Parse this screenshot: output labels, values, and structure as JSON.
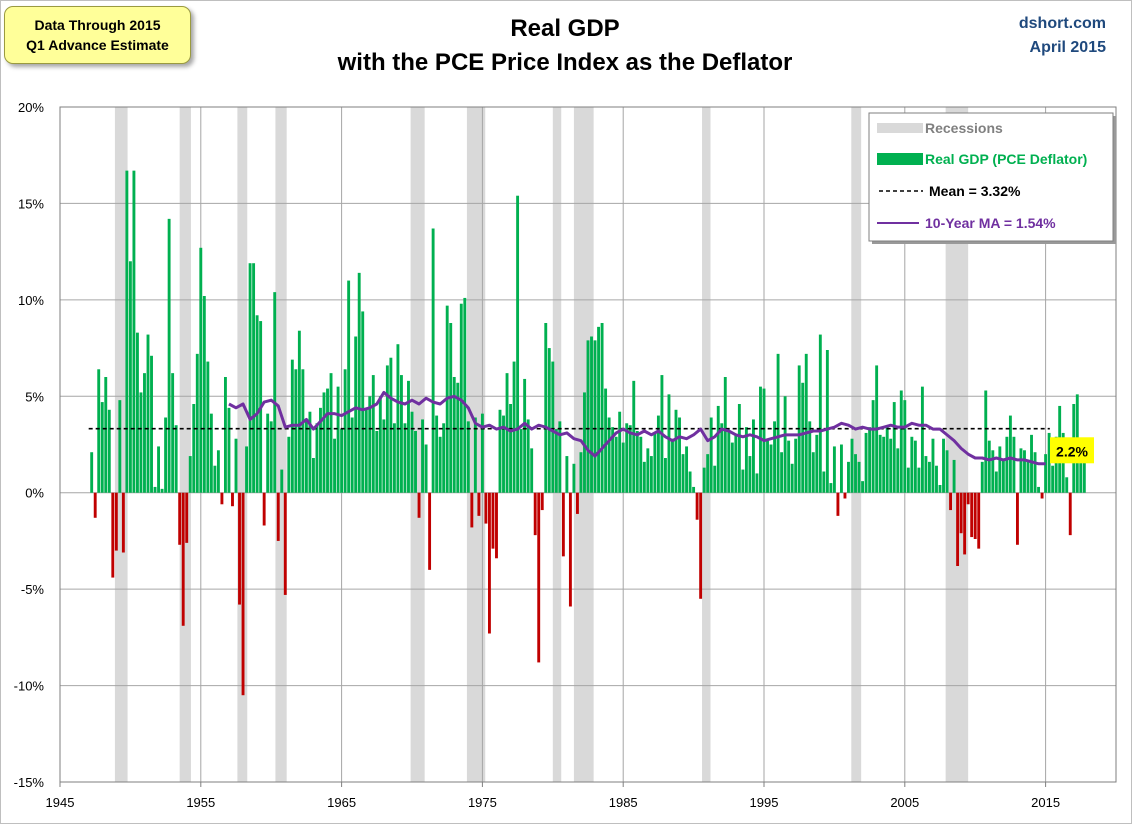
{
  "annotation_box": {
    "line1": "Data Through 2015",
    "line2": "Q1 Advance Estimate"
  },
  "title": {
    "line1": "Real GDP",
    "line2": "with the PCE Price Index as the Deflator"
  },
  "source": {
    "site": "dshort.com",
    "date": "April 2015"
  },
  "colors": {
    "positive_bar": "#00b050",
    "negative_bar": "#c00000",
    "recession": "#d9d9d9",
    "mean_line": "#000000",
    "ma_line": "#7030a0",
    "callout_bg": "#ffff00",
    "grid": "#a6a6a6"
  },
  "chart_data": {
    "type": "bar",
    "x_range": [
      1945,
      2020
    ],
    "ylim": [
      -15,
      20
    ],
    "y_ticks": [
      "-15%",
      "-10%",
      "-5%",
      "0%",
      "5%",
      "10%",
      "15%",
      "20%"
    ],
    "y_tick_values": [
      -15,
      -10,
      -5,
      0,
      5,
      10,
      15,
      20
    ],
    "x_ticks": [
      "1945",
      "1955",
      "1965",
      "1975",
      "1985",
      "1995",
      "2005",
      "2015"
    ],
    "x_tick_values": [
      1945,
      1955,
      1965,
      1975,
      1985,
      1995,
      2005,
      2015
    ],
    "grid": true,
    "legend_position": "top-right",
    "legend": {
      "recessions": "Recessions",
      "bars": "Real GDP (PCE Deflator)",
      "mean": "Mean = 3.32%",
      "ma": "10-Year MA = 1.54%"
    },
    "recessions": [
      [
        1948.9,
        1949.8
      ],
      [
        1953.5,
        1954.3
      ],
      [
        1957.6,
        1958.3
      ],
      [
        1960.3,
        1961.1
      ],
      [
        1969.9,
        1970.9
      ],
      [
        1973.9,
        1975.2
      ],
      [
        1980.0,
        1980.6
      ],
      [
        1981.5,
        1982.9
      ],
      [
        1990.6,
        1991.2
      ],
      [
        2001.2,
        2001.9
      ],
      [
        2007.9,
        2009.5
      ]
    ],
    "mean": 3.32,
    "callout": {
      "label": "2.2%",
      "value": 2.2
    },
    "series": [
      {
        "name": "Real GDP (PCE Deflator)",
        "start": 1947.25,
        "step": 0.25,
        "values": [
          2.1,
          -1.3,
          6.4,
          4.7,
          6.0,
          4.3,
          -4.4,
          -3.0,
          4.8,
          -3.1,
          16.7,
          12.0,
          16.7,
          8.3,
          5.2,
          6.2,
          8.2,
          7.1,
          0.3,
          2.4,
          0.2,
          3.9,
          14.2,
          6.2,
          3.5,
          -2.7,
          -6.9,
          -2.6,
          1.9,
          4.6,
          7.2,
          12.7,
          10.2,
          6.8,
          4.1,
          1.4,
          2.2,
          -0.6,
          6.0,
          4.4,
          -0.7,
          2.8,
          -5.8,
          -10.5,
          2.4,
          11.9,
          11.9,
          9.2,
          8.9,
          -1.7,
          4.1,
          3.7,
          10.4,
          -2.5,
          1.2,
          -5.3,
          2.9,
          6.9,
          6.4,
          8.4,
          6.4,
          3.8,
          4.2,
          1.8,
          3.6,
          4.4,
          5.2,
          5.4,
          6.2,
          2.8,
          5.5,
          3.3,
          6.4,
          11.0,
          3.9,
          8.1,
          11.4,
          9.4,
          4.3,
          5.0,
          6.1,
          3.2,
          5.0,
          3.8,
          6.6,
          7.0,
          3.6,
          7.7,
          6.1,
          3.6,
          5.8,
          4.2,
          3.2,
          -1.3,
          3.8,
          2.5,
          -4.0,
          13.7,
          4.0,
          2.9,
          3.6,
          9.7,
          8.8,
          6.0,
          5.7,
          9.8,
          10.1,
          3.7,
          -1.8,
          3.9,
          -1.2,
          4.1,
          -1.6,
          -7.3,
          -2.9,
          -3.4,
          4.3,
          4.0,
          6.2,
          4.6,
          6.8,
          15.4,
          3.3,
          5.9,
          3.8,
          2.3,
          -2.2,
          -8.8,
          -0.9,
          8.8,
          7.5,
          6.8,
          3.3,
          3.7,
          -3.3,
          1.9,
          -5.9,
          1.5,
          -1.1,
          2.1,
          5.2,
          7.9,
          8.1,
          7.9,
          8.6,
          8.8,
          5.4,
          3.9,
          3.4,
          2.9,
          4.2,
          2.6,
          3.6,
          3.5,
          5.8,
          3.2,
          2.9,
          1.6,
          2.3,
          1.9,
          3.1,
          4.0,
          6.1,
          1.8,
          5.1,
          2.8,
          4.3,
          3.9,
          2.0,
          2.4,
          1.1,
          0.3,
          -1.4,
          -5.5,
          1.3,
          2.0,
          3.9,
          1.4,
          4.5,
          3.6,
          6.0,
          3.2,
          2.6,
          3.0,
          4.6,
          1.2,
          3.4,
          1.9,
          3.8,
          1.0,
          5.5,
          5.4,
          2.7,
          2.5,
          3.7,
          7.2,
          2.1,
          5.0,
          2.7,
          1.5,
          2.8,
          6.6,
          5.7,
          7.2,
          3.7,
          2.1,
          3.0,
          8.2,
          1.1,
          7.4,
          0.5,
          2.4,
          -1.2,
          2.5,
          -0.3,
          1.6,
          2.8,
          2.0,
          1.6,
          0.6,
          3.1,
          3.4,
          4.8,
          6.6,
          3.0,
          2.9,
          3.4,
          2.8,
          4.7,
          2.3,
          5.3,
          4.8,
          1.3,
          2.9,
          2.7,
          1.3,
          5.5,
          1.9,
          1.6,
          2.8,
          1.4,
          0.4,
          2.8,
          2.2,
          -0.9,
          1.7,
          -3.8,
          -2.1,
          -3.2,
          -0.6,
          -2.3,
          -2.4,
          -2.9,
          1.6,
          5.3,
          2.7,
          2.2,
          1.1,
          2.4,
          1.7,
          2.9,
          4.0,
          2.9,
          -2.7,
          2.3,
          2.2,
          1.7,
          3.0,
          2.1,
          0.3,
          -0.3,
          2.0,
          3.1,
          1.4,
          2.9,
          4.5,
          3.1,
          0.8,
          -2.2,
          4.6,
          5.1,
          2.2,
          2.2
        ]
      },
      {
        "name": "10-Year MA = 1.54%",
        "points": [
          [
            1957.0,
            4.6
          ],
          [
            1957.5,
            4.4
          ],
          [
            1958.0,
            4.6
          ],
          [
            1958.5,
            3.8
          ],
          [
            1959.0,
            4.1
          ],
          [
            1959.5,
            4.7
          ],
          [
            1960.0,
            4.8
          ],
          [
            1960.5,
            4.5
          ],
          [
            1961.0,
            3.4
          ],
          [
            1961.5,
            3.5
          ],
          [
            1962.0,
            3.5
          ],
          [
            1962.5,
            3.8
          ],
          [
            1963.0,
            3.3
          ],
          [
            1963.5,
            3.7
          ],
          [
            1964.0,
            4.1
          ],
          [
            1964.5,
            4.1
          ],
          [
            1965.0,
            4.0
          ],
          [
            1965.5,
            4.2
          ],
          [
            1966.0,
            4.4
          ],
          [
            1966.5,
            4.3
          ],
          [
            1967.0,
            4.4
          ],
          [
            1967.5,
            4.6
          ],
          [
            1968.0,
            5.2
          ],
          [
            1968.5,
            4.9
          ],
          [
            1969.0,
            4.7
          ],
          [
            1969.5,
            4.6
          ],
          [
            1970.0,
            4.8
          ],
          [
            1970.5,
            4.6
          ],
          [
            1971.0,
            4.9
          ],
          [
            1971.5,
            4.7
          ],
          [
            1972.0,
            4.6
          ],
          [
            1972.5,
            4.9
          ],
          [
            1973.0,
            5.0
          ],
          [
            1973.5,
            4.8
          ],
          [
            1974.0,
            4.4
          ],
          [
            1974.5,
            3.6
          ],
          [
            1975.0,
            3.4
          ],
          [
            1975.5,
            3.5
          ],
          [
            1976.0,
            3.3
          ],
          [
            1976.5,
            3.4
          ],
          [
            1977.0,
            3.2
          ],
          [
            1977.5,
            3.3
          ],
          [
            1978.0,
            3.6
          ],
          [
            1978.5,
            3.3
          ],
          [
            1979.0,
            3.5
          ],
          [
            1979.5,
            3.4
          ],
          [
            1980.0,
            3.2
          ],
          [
            1980.5,
            3.0
          ],
          [
            1981.0,
            3.1
          ],
          [
            1981.5,
            2.8
          ],
          [
            1982.0,
            2.7
          ],
          [
            1982.5,
            2.2
          ],
          [
            1983.0,
            1.9
          ],
          [
            1983.5,
            2.3
          ],
          [
            1984.0,
            2.7
          ],
          [
            1984.5,
            3.1
          ],
          [
            1985.0,
            3.3
          ],
          [
            1985.5,
            3.1
          ],
          [
            1986.0,
            3.0
          ],
          [
            1986.5,
            3.2
          ],
          [
            1987.0,
            3.0
          ],
          [
            1987.5,
            3.2
          ],
          [
            1988.0,
            2.9
          ],
          [
            1988.5,
            2.7
          ],
          [
            1989.0,
            2.9
          ],
          [
            1989.5,
            2.8
          ],
          [
            1990.0,
            3.0
          ],
          [
            1990.5,
            3.3
          ],
          [
            1991.0,
            2.7
          ],
          [
            1991.5,
            2.9
          ],
          [
            1992.0,
            3.3
          ],
          [
            1992.5,
            3.2
          ],
          [
            1993.0,
            3.0
          ],
          [
            1993.5,
            2.9
          ],
          [
            1994.0,
            3.0
          ],
          [
            1994.5,
            2.9
          ],
          [
            1995.0,
            2.7
          ],
          [
            1995.5,
            2.8
          ],
          [
            1996.0,
            2.9
          ],
          [
            1996.5,
            3.0
          ],
          [
            1997.0,
            3.0
          ],
          [
            1997.5,
            3.0
          ],
          [
            1998.0,
            3.1
          ],
          [
            1998.5,
            3.2
          ],
          [
            1999.0,
            3.2
          ],
          [
            1999.5,
            3.3
          ],
          [
            2000.0,
            3.4
          ],
          [
            2000.5,
            3.6
          ],
          [
            2001.0,
            3.5
          ],
          [
            2001.5,
            3.3
          ],
          [
            2002.0,
            3.4
          ],
          [
            2002.5,
            3.3
          ],
          [
            2003.0,
            3.3
          ],
          [
            2003.5,
            3.4
          ],
          [
            2004.0,
            3.5
          ],
          [
            2004.5,
            3.4
          ],
          [
            2005.0,
            3.4
          ],
          [
            2005.5,
            3.6
          ],
          [
            2006.0,
            3.5
          ],
          [
            2006.5,
            3.5
          ],
          [
            2007.0,
            3.3
          ],
          [
            2007.5,
            3.3
          ],
          [
            2008.0,
            3.0
          ],
          [
            2008.5,
            2.7
          ],
          [
            2009.0,
            2.3
          ],
          [
            2009.5,
            2.0
          ],
          [
            2010.0,
            1.8
          ],
          [
            2010.5,
            1.8
          ],
          [
            2011.0,
            1.7
          ],
          [
            2011.5,
            1.8
          ],
          [
            2012.0,
            1.7
          ],
          [
            2012.5,
            1.8
          ],
          [
            2013.0,
            1.7
          ],
          [
            2013.5,
            1.7
          ],
          [
            2014.0,
            1.6
          ],
          [
            2014.5,
            1.5
          ],
          [
            2015.0,
            1.5
          ]
        ]
      }
    ]
  }
}
